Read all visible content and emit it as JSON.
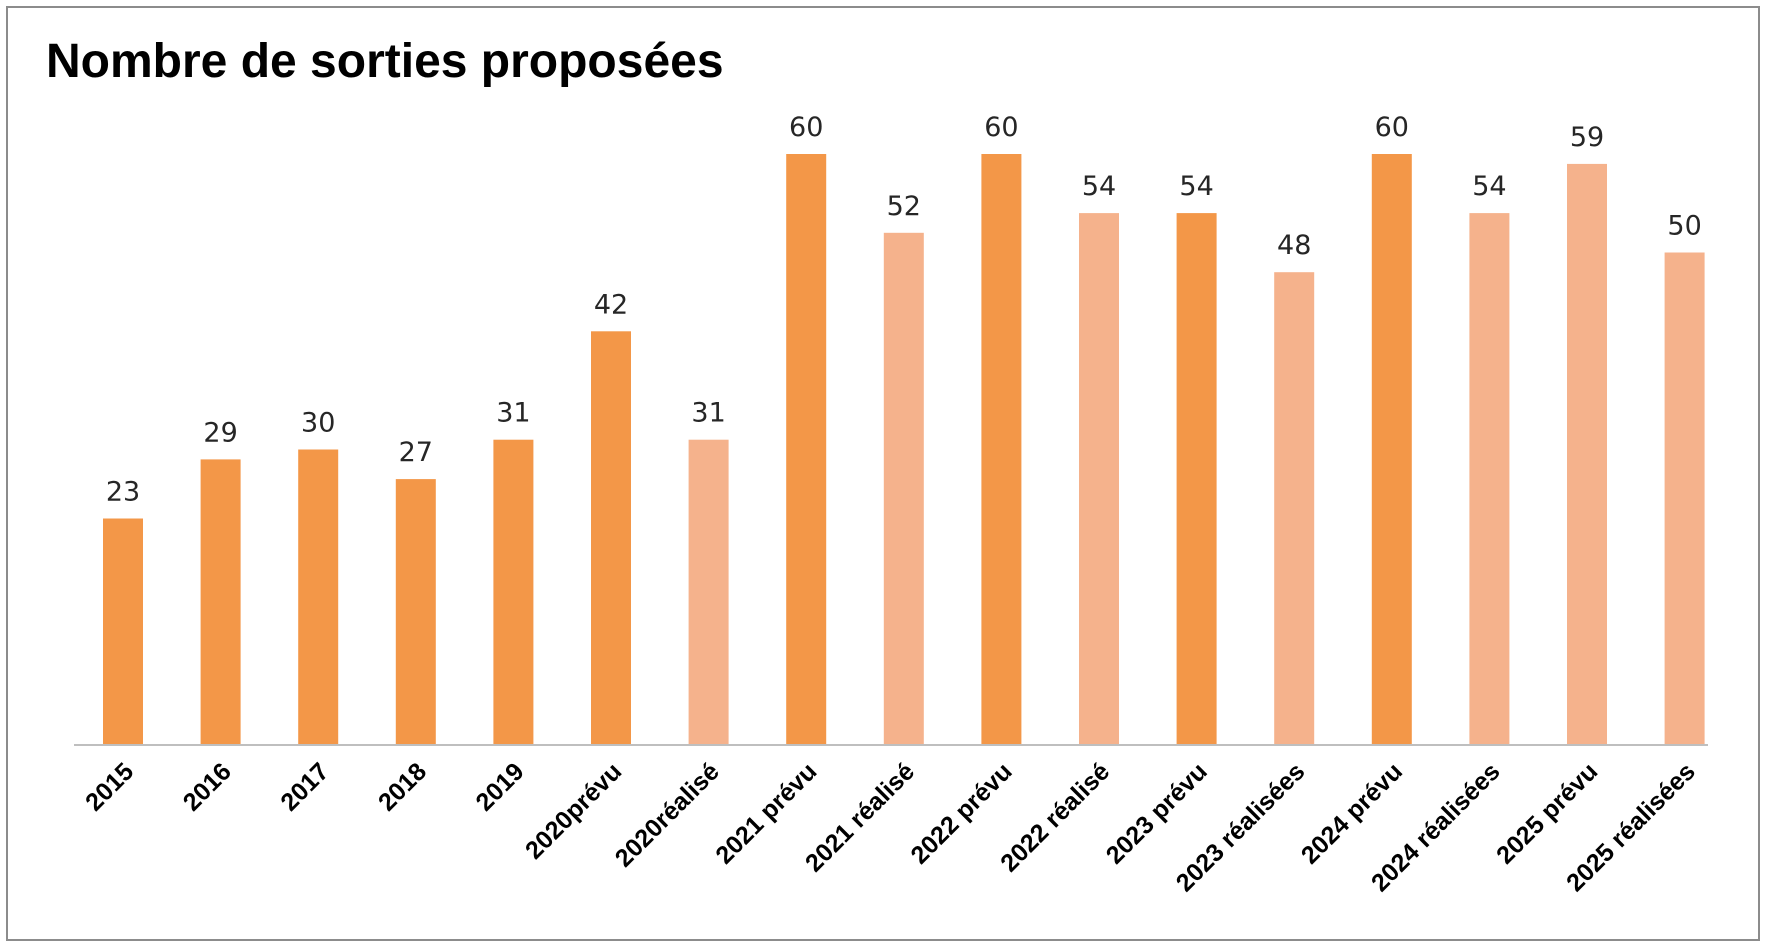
{
  "chart_data": {
    "type": "bar",
    "title": "Nombre de sorties proposées",
    "categories": [
      "2015",
      "2016",
      "2017",
      "2018",
      "2019",
      "2020prévu",
      "2020réalisé",
      "2021 prévu",
      "2021 réalisé",
      "2022 prévu",
      "2022 réalisé",
      "2023 prévu",
      "2023 réalisées",
      "2024 prévu",
      "2024 réalisées",
      "2025 prévu",
      "2025 réalisées"
    ],
    "values": [
      23,
      29,
      30,
      27,
      31,
      42,
      31,
      60,
      52,
      60,
      54,
      54,
      48,
      60,
      54,
      59,
      50
    ],
    "value_labels": [
      "23",
      "29",
      "30",
      "27",
      "31",
      "42",
      "31",
      "60",
      "52",
      "60",
      "54",
      "54",
      "48",
      "60",
      "54",
      "59",
      "50"
    ],
    "bar_styles": [
      "dark",
      "dark",
      "dark",
      "dark",
      "dark",
      "dark",
      "light",
      "dark",
      "light",
      "dark",
      "light",
      "dark",
      "light",
      "dark",
      "light",
      "light",
      "light"
    ],
    "ylim": [
      0,
      60
    ],
    "xlabel": "",
    "ylabel": "",
    "grid": false,
    "legend": "none",
    "data_labels": true
  },
  "colors": {
    "dark": "#f39748",
    "light": "#f5b28c",
    "axis": "#bfbfbf",
    "frame": "#8c8c8c"
  }
}
